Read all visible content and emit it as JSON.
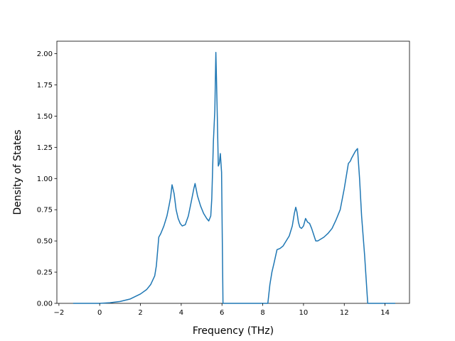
{
  "chart_data": {
    "type": "line",
    "title": "",
    "xlabel": "Frequency (THz)",
    "ylabel": "Density of States",
    "xlim": [
      -2.1,
      15.2
    ],
    "ylim": [
      0.0,
      2.1
    ],
    "xticks": [
      -2,
      0,
      2,
      4,
      6,
      8,
      10,
      12,
      14
    ],
    "xtick_labels": [
      "−2",
      "0",
      "2",
      "4",
      "6",
      "8",
      "10",
      "12",
      "14"
    ],
    "yticks": [
      0.0,
      0.25,
      0.5,
      0.75,
      1.0,
      1.25,
      1.5,
      1.75,
      2.0
    ],
    "ytick_labels": [
      "0.00",
      "0.25",
      "0.50",
      "0.75",
      "1.00",
      "1.25",
      "1.50",
      "1.75",
      "2.00"
    ],
    "grid": false,
    "line_color": "#1f77b4",
    "series": [
      {
        "x": [
          -1.3,
          0.0,
          0.5,
          1.0,
          1.5,
          2.0,
          2.3,
          2.5,
          2.7,
          2.78,
          2.9,
          3.0,
          3.15,
          3.3,
          3.4,
          3.48,
          3.55,
          3.65,
          3.75,
          3.85,
          3.95,
          4.05,
          4.2,
          4.35,
          4.5,
          4.62,
          4.68,
          4.8,
          4.95,
          5.1,
          5.25,
          5.35,
          5.45,
          5.5,
          5.58,
          5.65,
          5.7,
          5.73,
          5.77,
          5.82,
          5.87,
          5.92,
          5.98,
          6.05,
          6.2,
          8.25,
          8.35,
          8.45,
          8.55,
          8.7,
          8.85,
          9.0,
          9.15,
          9.3,
          9.45,
          9.55,
          9.62,
          9.68,
          9.75,
          9.82,
          9.9,
          10.0,
          10.1,
          10.2,
          10.3,
          10.4,
          10.5,
          10.6,
          10.7,
          10.8,
          10.9,
          11.0,
          11.2,
          11.4,
          11.6,
          11.8,
          12.0,
          12.2,
          12.3,
          12.35,
          12.45,
          12.55,
          12.65,
          12.75,
          12.85,
          13.0,
          13.15,
          14.5
        ],
        "y": [
          0.0,
          0.0,
          0.005,
          0.015,
          0.035,
          0.075,
          0.11,
          0.15,
          0.22,
          0.3,
          0.53,
          0.56,
          0.62,
          0.7,
          0.78,
          0.85,
          0.95,
          0.88,
          0.75,
          0.68,
          0.64,
          0.62,
          0.63,
          0.7,
          0.82,
          0.92,
          0.96,
          0.86,
          0.78,
          0.72,
          0.68,
          0.66,
          0.7,
          0.84,
          1.3,
          1.55,
          2.01,
          1.8,
          1.5,
          1.1,
          1.12,
          1.2,
          1.05,
          0.0,
          0.0,
          0.0,
          0.15,
          0.25,
          0.32,
          0.43,
          0.44,
          0.46,
          0.5,
          0.54,
          0.62,
          0.72,
          0.77,
          0.73,
          0.65,
          0.61,
          0.6,
          0.62,
          0.68,
          0.65,
          0.64,
          0.6,
          0.55,
          0.5,
          0.5,
          0.51,
          0.52,
          0.53,
          0.56,
          0.6,
          0.67,
          0.75,
          0.92,
          1.12,
          1.14,
          1.16,
          1.19,
          1.22,
          1.24,
          1.0,
          0.7,
          0.38,
          0.0,
          0.0
        ]
      }
    ]
  }
}
